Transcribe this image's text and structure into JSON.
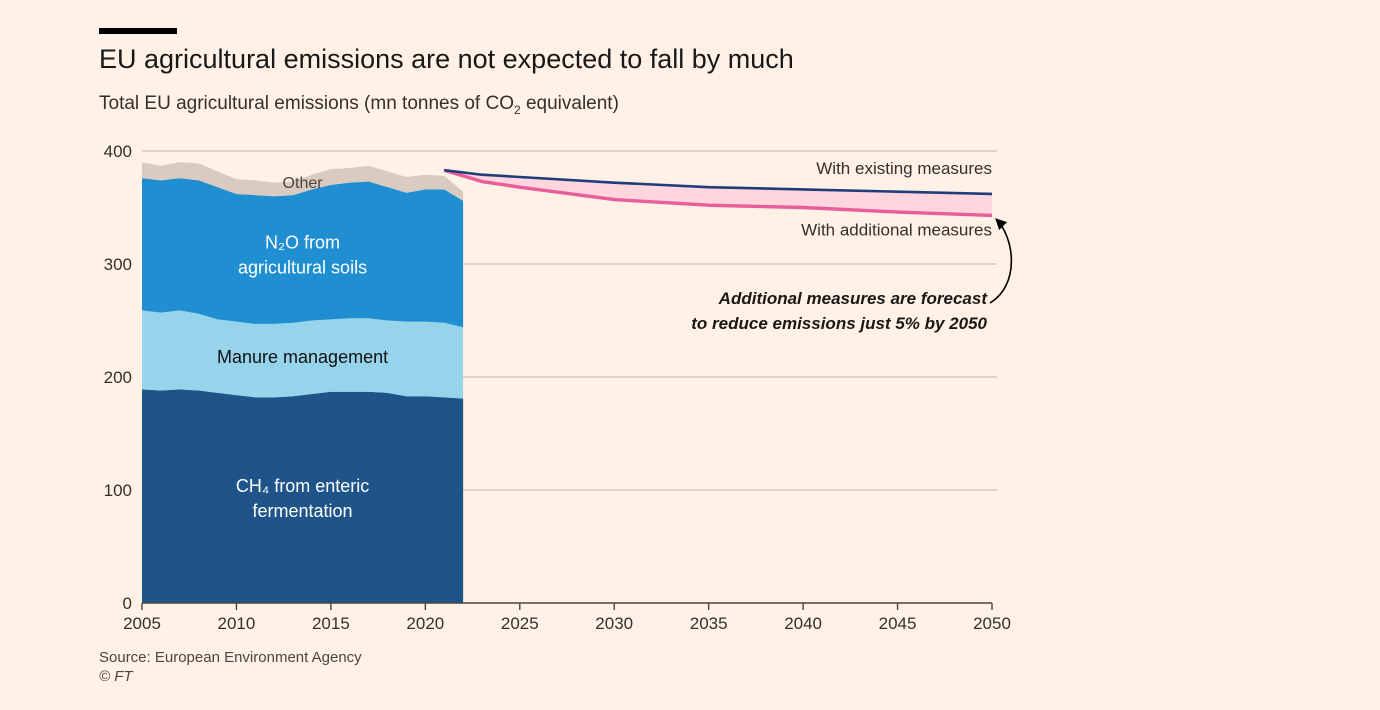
{
  "header": {
    "title": "EU agricultural emissions are not expected to fall by much",
    "subtitle_pre": "Total EU agricultural emissions (mn tonnes of CO",
    "subtitle_sub": "2",
    "subtitle_post": " equivalent)"
  },
  "footer": {
    "source": "Source: European Environment Agency",
    "credit": "© FT"
  },
  "colors": {
    "background": "#fff1e5",
    "ch4": "#1f548a",
    "manure": "#95d4ea",
    "n2o": "#1f8fd1",
    "other": "#d9cbc0",
    "existing": "#1f3d7a",
    "additional": "#e85d9a",
    "gap_fill": "#ffd5de",
    "grid": "#c8c1ba"
  },
  "chart_data": {
    "type": "area",
    "title": "EU agricultural emissions are not expected to fall by much",
    "ylabel": "Total EU agricultural emissions (mn tonnes of CO2 equivalent)",
    "xlim": [
      2005,
      2050
    ],
    "ylim": [
      0,
      400
    ],
    "yticks": [
      "0",
      "100",
      "200",
      "300",
      "400"
    ],
    "xticks": [
      "2005",
      "2010",
      "2015",
      "2020",
      "2025",
      "2030",
      "2035",
      "2040",
      "2045",
      "2050"
    ],
    "grid": true,
    "historical": {
      "years": [
        2005,
        2006,
        2007,
        2008,
        2009,
        2010,
        2011,
        2012,
        2013,
        2014,
        2015,
        2016,
        2017,
        2018,
        2019,
        2020,
        2021,
        2022
      ],
      "series": [
        {
          "name": "CH4 from enteric fermentation",
          "label_lines": [
            "CH₄ from enteric",
            "fermentation"
          ],
          "values": [
            189,
            188,
            189,
            188,
            186,
            184,
            182,
            182,
            183,
            185,
            187,
            187,
            187,
            186,
            183,
            183,
            182,
            181
          ]
        },
        {
          "name": "Manure management",
          "label_lines": [
            "Manure management"
          ],
          "values": [
            70,
            69,
            70,
            68,
            65,
            65,
            65,
            65,
            65,
            65,
            64,
            65,
            65,
            64,
            66,
            66,
            66,
            63
          ]
        },
        {
          "name": "N2O from agricultural soils",
          "label_lines": [
            "N₂O from",
            "agricultural soils"
          ],
          "values": [
            117,
            117,
            117,
            118,
            117,
            113,
            114,
            113,
            113,
            116,
            119,
            120,
            121,
            118,
            114,
            117,
            118,
            112
          ]
        },
        {
          "name": "Other",
          "label_lines": [
            "Other"
          ],
          "values": [
            14,
            13,
            14,
            15,
            14,
            13,
            13,
            12,
            12,
            13,
            14,
            13,
            14,
            14,
            14,
            13,
            12,
            8
          ]
        }
      ]
    },
    "projections": {
      "years": [
        2021,
        2023,
        2025,
        2030,
        2035,
        2040,
        2045,
        2050
      ],
      "series": [
        {
          "name": "With existing measures",
          "values": [
            383,
            379,
            377,
            372,
            368,
            366,
            364,
            362
          ]
        },
        {
          "name": "With additional measures",
          "values": [
            383,
            373,
            368,
            357,
            352,
            350,
            346,
            343
          ]
        }
      ]
    },
    "annotation": {
      "lines": [
        "Additional measures are forecast",
        "to reduce emissions just 5% by 2050"
      ]
    }
  }
}
